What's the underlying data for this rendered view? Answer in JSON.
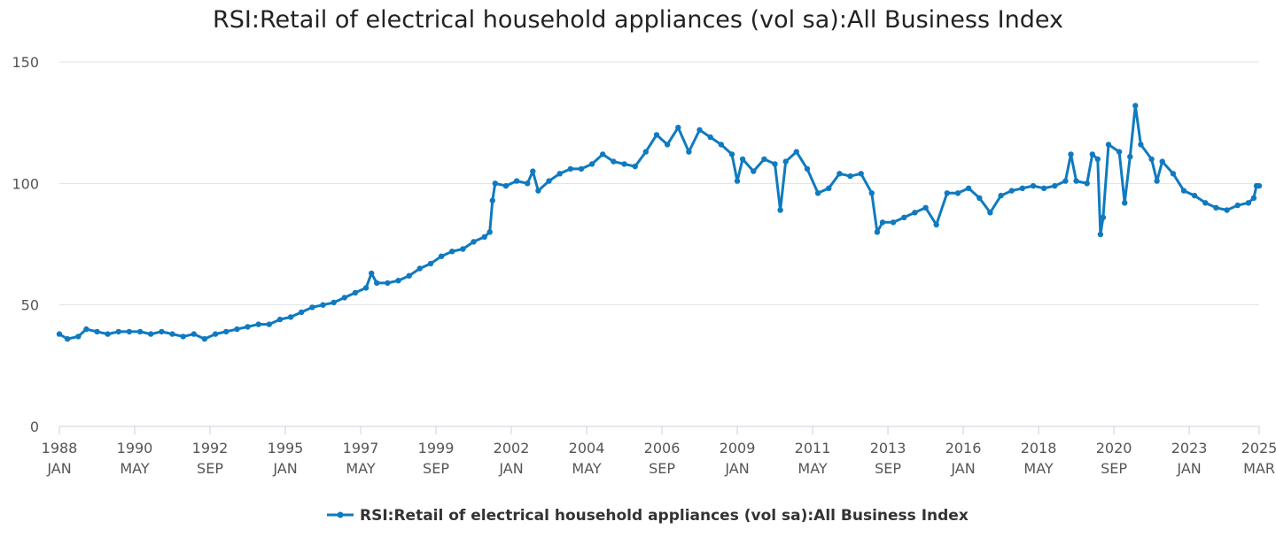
{
  "chart_data": {
    "type": "line",
    "title": "RSI:Retail of electrical household appliances (vol sa):All Business Index",
    "xlabel": "",
    "ylabel": "",
    "ylim": [
      0,
      150
    ],
    "y_ticks": [
      0,
      50,
      100,
      150
    ],
    "x_tick_labels": [
      {
        "year": "1988",
        "month": "JAN"
      },
      {
        "year": "1990",
        "month": "MAY"
      },
      {
        "year": "1992",
        "month": "SEP"
      },
      {
        "year": "1995",
        "month": "JAN"
      },
      {
        "year": "1997",
        "month": "MAY"
      },
      {
        "year": "1999",
        "month": "SEP"
      },
      {
        "year": "2002",
        "month": "JAN"
      },
      {
        "year": "2004",
        "month": "MAY"
      },
      {
        "year": "2006",
        "month": "SEP"
      },
      {
        "year": "2009",
        "month": "JAN"
      },
      {
        "year": "2011",
        "month": "MAY"
      },
      {
        "year": "2013",
        "month": "SEP"
      },
      {
        "year": "2016",
        "month": "JAN"
      },
      {
        "year": "2018",
        "month": "MAY"
      },
      {
        "year": "2020",
        "month": "SEP"
      },
      {
        "year": "2023",
        "month": "JAN"
      },
      {
        "year": "2025",
        "month": "MAR"
      }
    ],
    "grid": true,
    "legend_position": "bottom-center",
    "series": [
      {
        "name": "RSI:Retail of electrical household appliances (vol sa):All Business Index",
        "color": "#0f7ac0",
        "points": [
          {
            "x": "1988-01",
            "y": 38
          },
          {
            "x": "1988-04",
            "y": 36
          },
          {
            "x": "1988-08",
            "y": 37
          },
          {
            "x": "1988-11",
            "y": 40
          },
          {
            "x": "1989-03",
            "y": 39
          },
          {
            "x": "1989-07",
            "y": 38
          },
          {
            "x": "1989-11",
            "y": 39
          },
          {
            "x": "1990-03",
            "y": 39
          },
          {
            "x": "1990-07",
            "y": 39
          },
          {
            "x": "1990-11",
            "y": 38
          },
          {
            "x": "1991-03",
            "y": 39
          },
          {
            "x": "1991-07",
            "y": 38
          },
          {
            "x": "1991-11",
            "y": 37
          },
          {
            "x": "1992-03",
            "y": 38
          },
          {
            "x": "1992-07",
            "y": 36
          },
          {
            "x": "1992-11",
            "y": 38
          },
          {
            "x": "1993-03",
            "y": 39
          },
          {
            "x": "1993-07",
            "y": 40
          },
          {
            "x": "1993-11",
            "y": 41
          },
          {
            "x": "1994-03",
            "y": 42
          },
          {
            "x": "1994-07",
            "y": 42
          },
          {
            "x": "1994-11",
            "y": 44
          },
          {
            "x": "1995-03",
            "y": 45
          },
          {
            "x": "1995-07",
            "y": 47
          },
          {
            "x": "1995-11",
            "y": 49
          },
          {
            "x": "1996-03",
            "y": 50
          },
          {
            "x": "1996-07",
            "y": 51
          },
          {
            "x": "1996-11",
            "y": 53
          },
          {
            "x": "1997-03",
            "y": 55
          },
          {
            "x": "1997-07",
            "y": 57
          },
          {
            "x": "1997-09",
            "y": 63
          },
          {
            "x": "1997-11",
            "y": 59
          },
          {
            "x": "1998-03",
            "y": 59
          },
          {
            "x": "1998-07",
            "y": 60
          },
          {
            "x": "1998-11",
            "y": 62
          },
          {
            "x": "1999-03",
            "y": 65
          },
          {
            "x": "1999-07",
            "y": 67
          },
          {
            "x": "1999-11",
            "y": 70
          },
          {
            "x": "2000-03",
            "y": 72
          },
          {
            "x": "2000-07",
            "y": 73
          },
          {
            "x": "2000-11",
            "y": 76
          },
          {
            "x": "2001-03",
            "y": 78
          },
          {
            "x": "2001-05",
            "y": 80
          },
          {
            "x": "2001-06",
            "y": 93
          },
          {
            "x": "2001-07",
            "y": 100
          },
          {
            "x": "2001-11",
            "y": 99
          },
          {
            "x": "2002-03",
            "y": 101
          },
          {
            "x": "2002-07",
            "y": 100
          },
          {
            "x": "2002-09",
            "y": 105
          },
          {
            "x": "2002-11",
            "y": 97
          },
          {
            "x": "2003-03",
            "y": 101
          },
          {
            "x": "2003-07",
            "y": 104
          },
          {
            "x": "2003-11",
            "y": 106
          },
          {
            "x": "2004-03",
            "y": 106
          },
          {
            "x": "2004-07",
            "y": 108
          },
          {
            "x": "2004-11",
            "y": 112
          },
          {
            "x": "2005-03",
            "y": 109
          },
          {
            "x": "2005-07",
            "y": 108
          },
          {
            "x": "2005-11",
            "y": 107
          },
          {
            "x": "2006-03",
            "y": 113
          },
          {
            "x": "2006-07",
            "y": 120
          },
          {
            "x": "2006-11",
            "y": 116
          },
          {
            "x": "2007-03",
            "y": 123
          },
          {
            "x": "2007-07",
            "y": 113
          },
          {
            "x": "2007-11",
            "y": 122
          },
          {
            "x": "2008-03",
            "y": 119
          },
          {
            "x": "2008-07",
            "y": 116
          },
          {
            "x": "2008-11",
            "y": 112
          },
          {
            "x": "2009-01",
            "y": 101
          },
          {
            "x": "2009-03",
            "y": 110
          },
          {
            "x": "2009-07",
            "y": 105
          },
          {
            "x": "2009-11",
            "y": 110
          },
          {
            "x": "2010-03",
            "y": 108
          },
          {
            "x": "2010-05",
            "y": 89
          },
          {
            "x": "2010-07",
            "y": 109
          },
          {
            "x": "2010-11",
            "y": 113
          },
          {
            "x": "2011-03",
            "y": 106
          },
          {
            "x": "2011-07",
            "y": 96
          },
          {
            "x": "2011-11",
            "y": 98
          },
          {
            "x": "2012-03",
            "y": 104
          },
          {
            "x": "2012-07",
            "y": 103
          },
          {
            "x": "2012-11",
            "y": 104
          },
          {
            "x": "2013-03",
            "y": 96
          },
          {
            "x": "2013-05",
            "y": 80
          },
          {
            "x": "2013-07",
            "y": 84
          },
          {
            "x": "2013-11",
            "y": 84
          },
          {
            "x": "2014-03",
            "y": 86
          },
          {
            "x": "2014-07",
            "y": 88
          },
          {
            "x": "2014-11",
            "y": 90
          },
          {
            "x": "2015-03",
            "y": 83
          },
          {
            "x": "2015-07",
            "y": 96
          },
          {
            "x": "2015-11",
            "y": 96
          },
          {
            "x": "2016-03",
            "y": 98
          },
          {
            "x": "2016-07",
            "y": 94
          },
          {
            "x": "2016-11",
            "y": 88
          },
          {
            "x": "2017-03",
            "y": 95
          },
          {
            "x": "2017-07",
            "y": 97
          },
          {
            "x": "2017-11",
            "y": 98
          },
          {
            "x": "2018-03",
            "y": 99
          },
          {
            "x": "2018-07",
            "y": 98
          },
          {
            "x": "2018-11",
            "y": 99
          },
          {
            "x": "2019-03",
            "y": 101
          },
          {
            "x": "2019-05",
            "y": 112
          },
          {
            "x": "2019-07",
            "y": 101
          },
          {
            "x": "2019-11",
            "y": 100
          },
          {
            "x": "2020-01",
            "y": 112
          },
          {
            "x": "2020-03",
            "y": 110
          },
          {
            "x": "2020-04",
            "y": 79
          },
          {
            "x": "2020-05",
            "y": 86
          },
          {
            "x": "2020-07",
            "y": 116
          },
          {
            "x": "2020-11",
            "y": 113
          },
          {
            "x": "2021-01",
            "y": 92
          },
          {
            "x": "2021-03",
            "y": 111
          },
          {
            "x": "2021-05",
            "y": 132
          },
          {
            "x": "2021-07",
            "y": 116
          },
          {
            "x": "2021-11",
            "y": 110
          },
          {
            "x": "2022-01",
            "y": 101
          },
          {
            "x": "2022-03",
            "y": 109
          },
          {
            "x": "2022-07",
            "y": 104
          },
          {
            "x": "2022-11",
            "y": 97
          },
          {
            "x": "2023-03",
            "y": 95
          },
          {
            "x": "2023-07",
            "y": 92
          },
          {
            "x": "2023-11",
            "y": 90
          },
          {
            "x": "2024-03",
            "y": 89
          },
          {
            "x": "2024-07",
            "y": 91
          },
          {
            "x": "2024-11",
            "y": 92
          },
          {
            "x": "2025-01",
            "y": 94
          },
          {
            "x": "2025-02",
            "y": 99
          },
          {
            "x": "2025-03",
            "y": 99
          }
        ]
      }
    ]
  }
}
